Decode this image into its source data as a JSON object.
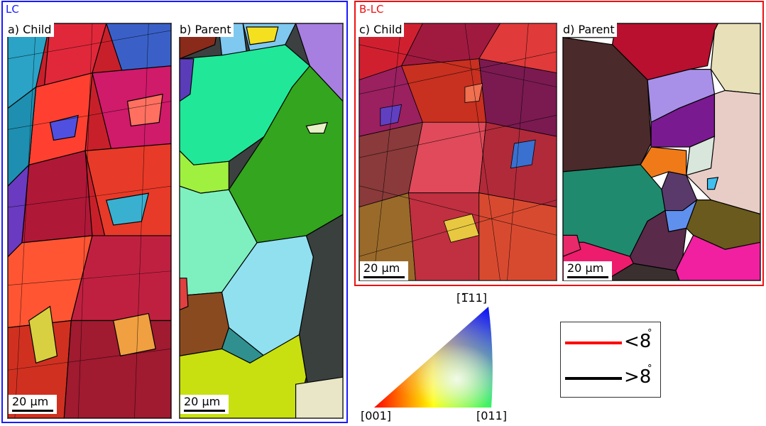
{
  "groups": {
    "lc": {
      "label": "LC",
      "color": "#1a1aff"
    },
    "blc": {
      "label": "B-LC",
      "color": "#ee1111"
    }
  },
  "panels": [
    {
      "id": "a",
      "title": "a) Child"
    },
    {
      "id": "b",
      "title": "b) Parent"
    },
    {
      "id": "c",
      "title": "c) Child"
    },
    {
      "id": "d",
      "title": "d) Parent"
    }
  ],
  "scalebar": {
    "label": "20 µm"
  },
  "ipf": {
    "corner_top": "[1̅11]",
    "corner_left": "[001]",
    "corner_right": "[011]"
  },
  "legend": {
    "low_angle": {
      "label": "<8",
      "unit": "°",
      "color": "#ff0000"
    },
    "high_angle": {
      "label": ">8",
      "unit": "°",
      "color": "#000000"
    }
  }
}
